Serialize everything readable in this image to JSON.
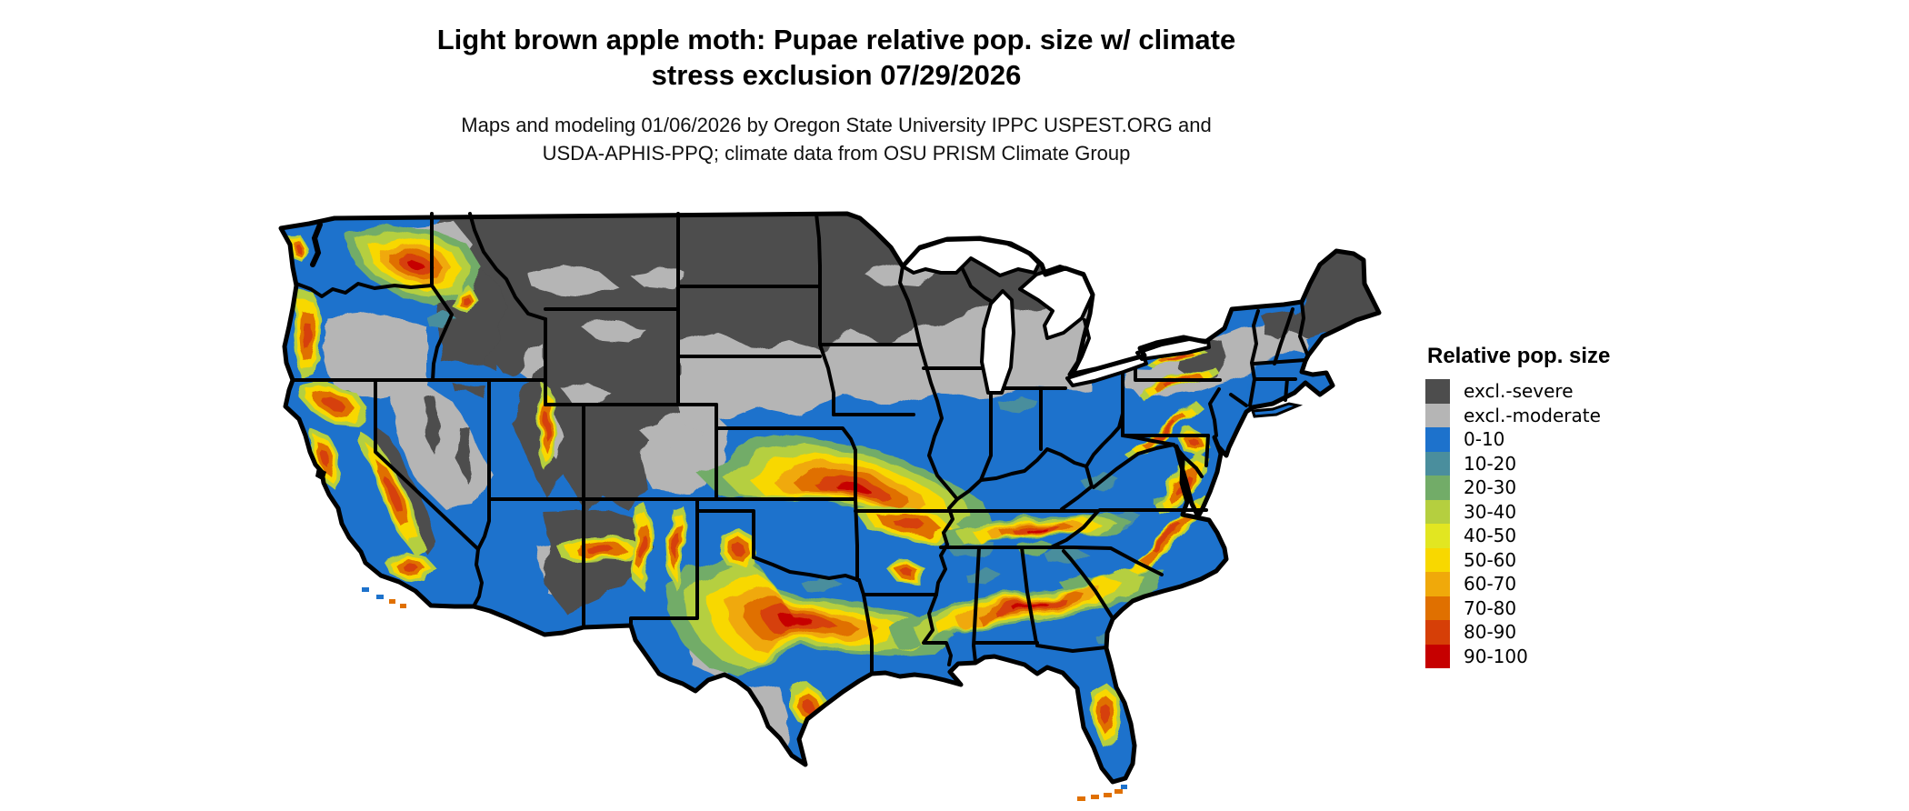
{
  "title": {
    "line1": "Light brown apple moth: Pupae relative pop. size w/ climate",
    "line2": "stress exclusion 07/29/2026"
  },
  "subtitle": {
    "line1": "Maps and modeling 01/06/2026 by Oregon State University IPPC USPEST.ORG and",
    "line2": "USDA-APHIS-PPQ; climate data from OSU PRISM Climate Group"
  },
  "legend": {
    "title": "Relative pop. size",
    "items": [
      {
        "label": "excl.-severe",
        "color": "#4d4d4d"
      },
      {
        "label": "excl.-moderate",
        "color": "#b5b5b5"
      },
      {
        "label": "0-10",
        "color": "#1d72cc"
      },
      {
        "label": "10-20",
        "color": "#4a8e9d"
      },
      {
        "label": "20-30",
        "color": "#72ac68"
      },
      {
        "label": "30-40",
        "color": "#b5cf3f"
      },
      {
        "label": "40-50",
        "color": "#e2e621"
      },
      {
        "label": "50-60",
        "color": "#f8d800"
      },
      {
        "label": "60-70",
        "color": "#f0a90a"
      },
      {
        "label": "70-80",
        "color": "#e07000"
      },
      {
        "label": "80-90",
        "color": "#d63f07"
      },
      {
        "label": "90-100",
        "color": "#c60000"
      }
    ]
  },
  "map": {
    "region": "Continental United States",
    "border_color": "#000000",
    "water_color": "#ffffff",
    "background_color": "#ffffff"
  }
}
